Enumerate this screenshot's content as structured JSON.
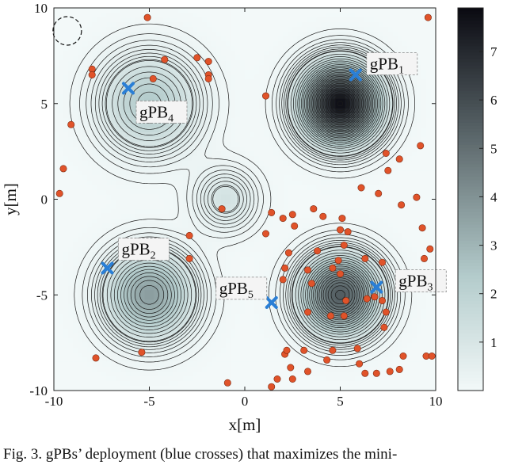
{
  "chart_data": {
    "type": "heatmap",
    "xlabel": "x[m]",
    "ylabel": "y[m]",
    "xlim": [
      -10,
      10
    ],
    "ylim": [
      -10,
      10
    ],
    "x_ticks": [
      "-10",
      "-5",
      "0",
      "5",
      "10"
    ],
    "y_ticks": [
      "10",
      "5",
      "0",
      "-5",
      "-10"
    ],
    "colorbar_ticks": [
      "7",
      "6",
      "5",
      "4",
      "3",
      "2",
      "1"
    ],
    "colorbar_range": [
      0,
      7.9
    ],
    "colors": {
      "low": "#f3f9f9",
      "mid": "#b4cccc",
      "high": "#0b0b12",
      "gpb_marker": "#2a7fd6",
      "user_point": "#e0532a",
      "contour": "#1a1a1a"
    },
    "peaks": [
      {
        "x": 5,
        "y": 5,
        "value": 7.8,
        "spread": 1.35
      },
      {
        "x": 5,
        "y": -5,
        "value": 5.6,
        "spread": 1.35
      },
      {
        "x": -5,
        "y": -5,
        "value": 3.7,
        "spread": 1.5
      },
      {
        "x": -5,
        "y": 5,
        "value": 2.4,
        "spread": 1.7
      },
      {
        "x": -1,
        "y": 0,
        "value": 1.2,
        "spread": 1.1
      }
    ],
    "gpbs": [
      {
        "name": "gPB",
        "sub": "1",
        "x": 5.8,
        "y": 6.5
      },
      {
        "name": "gPB",
        "sub": "2",
        "x": -7.2,
        "y": -3.6
      },
      {
        "name": "gPB",
        "sub": "3",
        "x": 6.9,
        "y": -4.6
      },
      {
        "name": "gPB",
        "sub": "4",
        "x": -6.1,
        "y": 5.8
      },
      {
        "name": "gPB",
        "sub": "5",
        "x": 1.4,
        "y": -5.4
      }
    ],
    "users": [
      [
        -5.1,
        9.5
      ],
      [
        9.6,
        9.5
      ],
      [
        -2.5,
        7.4
      ],
      [
        -1.9,
        7.2
      ],
      [
        -4.2,
        7.3
      ],
      [
        -8.0,
        6.8
      ],
      [
        -8.0,
        6.5
      ],
      [
        -4.8,
        6.3
      ],
      [
        -9.1,
        3.9
      ],
      [
        -9.5,
        1.6
      ],
      [
        -9.7,
        0.3
      ],
      [
        1.1,
        5.4
      ],
      [
        -1.9,
        6.5
      ],
      [
        -1.9,
        6.3
      ],
      [
        9.2,
        2.8
      ],
      [
        8.1,
        2.1
      ],
      [
        7.5,
        1.5
      ],
      [
        6.1,
        0.6
      ],
      [
        7.0,
        0.3
      ],
      [
        7.4,
        2.4
      ],
      [
        8.2,
        -0.3
      ],
      [
        9.0,
        0.1
      ],
      [
        9.3,
        -1.5
      ],
      [
        9.7,
        -2.6
      ],
      [
        9.4,
        -3.1
      ],
      [
        -1.2,
        -0.5
      ],
      [
        1.4,
        -0.7
      ],
      [
        2.0,
        -1.0
      ],
      [
        2.5,
        -0.8
      ],
      [
        2.6,
        -1.4
      ],
      [
        3.6,
        -0.5
      ],
      [
        4.1,
        -0.9
      ],
      [
        5.0,
        -1.6
      ],
      [
        5.1,
        -1.0
      ],
      [
        5.4,
        -1.7
      ],
      [
        4.9,
        -3.2
      ],
      [
        5.2,
        -2.4
      ],
      [
        6.3,
        -3.1
      ],
      [
        1.1,
        -1.8
      ],
      [
        2.3,
        -2.8
      ],
      [
        3.8,
        -2.7
      ],
      [
        4.6,
        -3.6
      ],
      [
        5.0,
        -3.9
      ],
      [
        3.3,
        -3.7
      ],
      [
        3.5,
        -4.4
      ],
      [
        2.0,
        -4.2
      ],
      [
        2.1,
        -3.6
      ],
      [
        7.2,
        -3.3
      ],
      [
        5.3,
        -5.3
      ],
      [
        5.2,
        -6.1
      ],
      [
        6.4,
        -5.2
      ],
      [
        6.8,
        -5.1
      ],
      [
        7.2,
        -5.3
      ],
      [
        7.4,
        -5.9
      ],
      [
        7.3,
        -6.7
      ],
      [
        4.5,
        -6.1
      ],
      [
        3.3,
        -5.9
      ],
      [
        -2.9,
        -3.1
      ],
      [
        -7.8,
        -8.3
      ],
      [
        -5.4,
        -8.0
      ],
      [
        2.1,
        -8.1
      ],
      [
        2.2,
        -7.9
      ],
      [
        3.1,
        -7.9
      ],
      [
        4.6,
        -7.9
      ],
      [
        5.9,
        -7.8
      ],
      [
        4.3,
        -8.4
      ],
      [
        6.0,
        -8.6
      ],
      [
        2.4,
        -8.8
      ],
      [
        3.3,
        -9.0
      ],
      [
        1.7,
        -9.4
      ],
      [
        2.5,
        -9.4
      ],
      [
        6.3,
        -9.1
      ],
      [
        6.9,
        -9.1
      ],
      [
        7.6,
        -9.0
      ],
      [
        8.1,
        -8.9
      ],
      [
        8.3,
        -8.2
      ],
      [
        9.5,
        -8.2
      ],
      [
        9.8,
        -8.2
      ],
      [
        -0.9,
        -9.6
      ],
      [
        1.4,
        -9.8
      ],
      [
        -2.9,
        -1.9
      ]
    ]
  },
  "caption": "Fig. 3.   gPBs’ deployment (blue crosses) that maximizes the mini-"
}
